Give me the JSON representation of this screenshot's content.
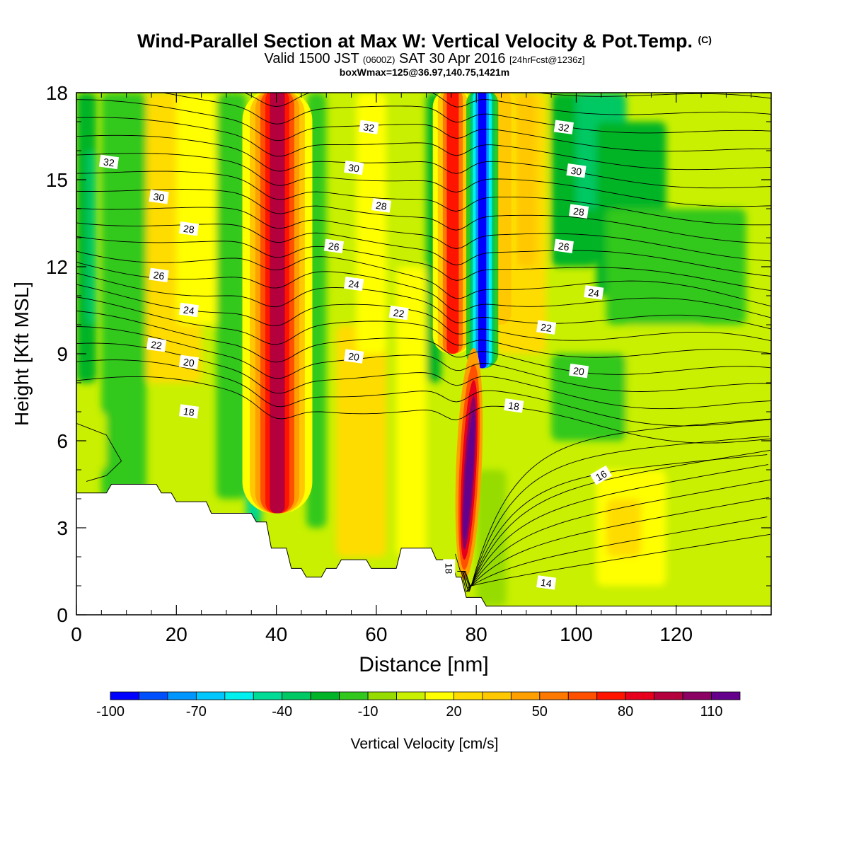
{
  "title": {
    "main": "Wind-Parallel Section at Max W: Vertical Velocity & Pot.Temp.",
    "copyright": "(C)",
    "valid_prefix": "Valid 1500 JST",
    "valid_z": "(0600Z)",
    "valid_date": "SAT 30 Apr 2016",
    "forecast": "[24hrFcst@1236z]",
    "box": "boxWmax=125@36.97,140.75,1421m"
  },
  "chart_data": {
    "type": "heatmap",
    "xlabel": "Distance [nm]",
    "ylabel": "Height [Kft MSL]",
    "xlim": [
      0,
      139
    ],
    "ylim": [
      0,
      18
    ],
    "x_ticks": [
      0,
      20,
      40,
      60,
      80,
      100,
      120
    ],
    "y_ticks": [
      0,
      3,
      6,
      9,
      12,
      15,
      18
    ],
    "colorbar": {
      "label": "Vertical Velocity [cm/s]",
      "min": -100,
      "step": 10,
      "tick_labels": [
        "-100",
        "-70",
        "-40",
        "-10",
        "20",
        "50",
        "80",
        "110"
      ],
      "colors": [
        "#0000ff",
        "#0050ff",
        "#0096ff",
        "#00c8ff",
        "#00f0f0",
        "#00dc96",
        "#00c864",
        "#00b428",
        "#32c81e",
        "#96dc00",
        "#c8f000",
        "#ffff00",
        "#ffdc00",
        "#ffc800",
        "#ffa000",
        "#ff7800",
        "#ff5000",
        "#ff1400",
        "#e6001e",
        "#b4003c",
        "#8c0064",
        "#64008c"
      ]
    },
    "vertical_velocity_features": [
      {
        "x": 40,
        "z_range": [
          4,
          18
        ],
        "w": 90
      },
      {
        "x": 75,
        "z_range": [
          9,
          18
        ],
        "w": 70
      },
      {
        "x": 81,
        "z_range": [
          9,
          18
        ],
        "w": -100
      },
      {
        "x": 78,
        "z_range": [
          1.5,
          7
        ],
        "w": 125
      },
      {
        "x": 36,
        "z_range": [
          3,
          6
        ],
        "w": -50
      }
    ],
    "terrain_kft": [
      [
        0,
        4.2
      ],
      [
        6,
        4.2
      ],
      [
        7,
        4.5
      ],
      [
        16,
        4.5
      ],
      [
        17,
        4.2
      ],
      [
        19,
        4.2
      ],
      [
        20,
        3.9
      ],
      [
        26,
        3.9
      ],
      [
        27,
        3.5
      ],
      [
        35,
        3.5
      ],
      [
        36,
        3.2
      ],
      [
        38,
        3.2
      ],
      [
        39,
        2.3
      ],
      [
        42,
        2.3
      ],
      [
        43,
        1.6
      ],
      [
        45,
        1.6
      ],
      [
        46,
        1.3
      ],
      [
        49,
        1.3
      ],
      [
        50,
        1.6
      ],
      [
        52,
        1.6
      ],
      [
        53,
        1.9
      ],
      [
        58,
        1.9
      ],
      [
        59,
        1.6
      ],
      [
        64,
        1.6
      ],
      [
        65,
        2.3
      ],
      [
        71,
        2.3
      ],
      [
        72,
        1.9
      ],
      [
        75,
        1.9
      ],
      [
        76,
        1.3
      ],
      [
        77,
        1.3
      ],
      [
        78,
        0.6
      ],
      [
        81,
        0.6
      ],
      [
        82,
        0.3
      ],
      [
        139,
        0.3
      ]
    ],
    "isentrope_labels": [
      {
        "text": "32",
        "x": 6.5,
        "y": 15.6
      },
      {
        "text": "32",
        "x": 58.5,
        "y": 16.8
      },
      {
        "text": "32",
        "x": 97.5,
        "y": 16.8
      },
      {
        "text": "30",
        "x": 16.5,
        "y": 14.4
      },
      {
        "text": "30",
        "x": 55.5,
        "y": 15.4
      },
      {
        "text": "30",
        "x": 100,
        "y": 15.3
      },
      {
        "text": "28",
        "x": 22.5,
        "y": 13.3
      },
      {
        "text": "28",
        "x": 61,
        "y": 14.1
      },
      {
        "text": "28",
        "x": 100.5,
        "y": 13.9
      },
      {
        "text": "26",
        "x": 16.5,
        "y": 11.7
      },
      {
        "text": "26",
        "x": 51.5,
        "y": 12.7
      },
      {
        "text": "26",
        "x": 97.5,
        "y": 12.7
      },
      {
        "text": "24",
        "x": 22.5,
        "y": 10.5
      },
      {
        "text": "24",
        "x": 55.5,
        "y": 11.4
      },
      {
        "text": "24",
        "x": 103.5,
        "y": 11.1
      },
      {
        "text": "22",
        "x": 16,
        "y": 9.3
      },
      {
        "text": "22",
        "x": 64.5,
        "y": 10.4
      },
      {
        "text": "22",
        "x": 94,
        "y": 9.9
      },
      {
        "text": "20",
        "x": 22.5,
        "y": 8.7
      },
      {
        "text": "20",
        "x": 55.5,
        "y": 8.9
      },
      {
        "text": "20",
        "x": 100.5,
        "y": 8.4
      },
      {
        "text": "18",
        "x": 22.5,
        "y": 7.0
      },
      {
        "text": "18",
        "x": 87.5,
        "y": 7.2
      },
      {
        "text": "18",
        "x": 74.5,
        "y": 1.6
      },
      {
        "text": "16",
        "x": 105,
        "y": 4.8
      },
      {
        "text": "14",
        "x": 94,
        "y": 1.1
      }
    ]
  }
}
